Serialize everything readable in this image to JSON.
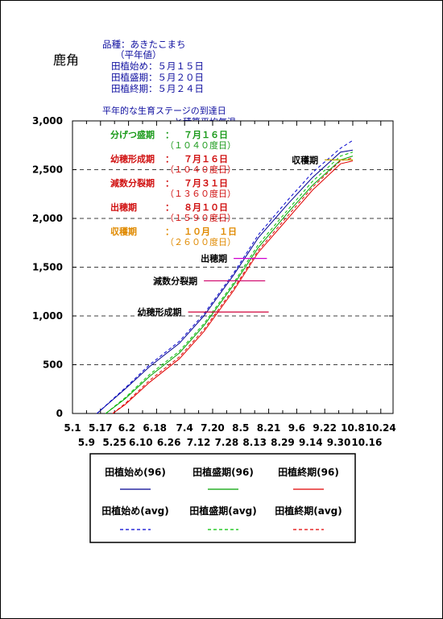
{
  "site": {
    "name": "鹿角"
  },
  "info": {
    "variety": "品種：あきたこまち",
    "note": "（平年値）",
    "plant_start": "田植始め：５月１５日",
    "plant_peak": "田植盛期：５月２０日",
    "plant_end": "田植終期：５月２４日"
  },
  "avg_title": {
    "line1": "平年的な生育ステージの到達日",
    "line2": "と積算平均気温"
  },
  "stages": [
    {
      "name": "分げつ盛期",
      "sep": "：",
      "date": "７月１６日",
      "gdd": "（１０４０度日）",
      "color": "#1a9a1a"
    },
    {
      "name": "幼穂形成期",
      "sep": "：",
      "date": "７月１６日",
      "gdd": "（１０４０度日）",
      "color": "#d01010"
    },
    {
      "name": "減数分裂期",
      "sep": "：",
      "date": "７月３１日",
      "gdd": "（１３６０度日）",
      "color": "#d01010"
    },
    {
      "name": "出穂期",
      "sep": "：",
      "date": "８月１０日",
      "gdd": "（１５９０度日）",
      "color": "#d01010"
    },
    {
      "name": "収穫期",
      "sep": "：",
      "date": "１０月　１日",
      "gdd": "（２６００度日）",
      "color": "#e08a00"
    }
  ],
  "annotations": [
    {
      "label": "収穫期",
      "value": 2600,
      "from": "9.22",
      "to": "10.8",
      "color": "#c0a000"
    },
    {
      "label": "出穂期",
      "value": 1590,
      "from": "8.1",
      "to": "8.20",
      "color": "#d000d0"
    },
    {
      "label": "減数分裂期",
      "value": 1360,
      "from": "7.15",
      "to": "8.19",
      "color": "#d0006a"
    },
    {
      "label": "幼穂形成期",
      "value": 1040,
      "from": "7.6",
      "to": "8.21",
      "color": "#d0003a"
    }
  ],
  "legend": {
    "items": [
      {
        "label": "田植始め(96)",
        "color": "#000090",
        "dash": "solid"
      },
      {
        "label": "田植盛期(96)",
        "color": "#00a000",
        "dash": "solid"
      },
      {
        "label": "田植終期(96)",
        "color": "#e00000",
        "dash": "solid"
      },
      {
        "label": "田植始め(avg)",
        "color": "#0000d0",
        "dash": "dashed"
      },
      {
        "label": "田植盛期(avg)",
        "color": "#00c000",
        "dash": "dashed"
      },
      {
        "label": "田植終期(avg)",
        "color": "#e00000",
        "dash": "dashed"
      }
    ]
  },
  "chart_data": {
    "type": "line",
    "x_tick_labels_top": [
      "5.1",
      "5.17",
      "6.2",
      "6.18",
      "7.4",
      "7.20",
      "8.5",
      "8.21",
      "9.6",
      "9.22",
      "10.8",
      "10.24"
    ],
    "x_tick_labels_bottom": [
      "5.9",
      "5.25",
      "6.10",
      "6.26",
      "7.12",
      "7.28",
      "8.13",
      "8.29",
      "9.14",
      "9.30",
      "10.16"
    ],
    "y_tick_labels": [
      "0",
      "500",
      "1,000",
      "1,500",
      "2,000",
      "2,500",
      "3,000"
    ],
    "ylim": [
      0,
      3000
    ],
    "xlim": [
      "5.1",
      "10.31"
    ],
    "grid": "horizontal-dashed",
    "series": [
      {
        "name": "田植始め(96)",
        "x": [
          "5.15",
          "6.1",
          "6.15",
          "7.1",
          "7.15",
          "8.1",
          "8.15",
          "9.1",
          "9.15",
          "10.1",
          "10.8"
        ],
        "values": [
          0,
          250,
          480,
          720,
          1000,
          1420,
          1800,
          2150,
          2420,
          2680,
          2700
        ]
      },
      {
        "name": "田植盛期(96)",
        "x": [
          "5.20",
          "6.1",
          "6.15",
          "7.1",
          "7.15",
          "8.1",
          "8.15",
          "9.1",
          "9.15",
          "10.1",
          "10.8"
        ],
        "values": [
          0,
          150,
          380,
          620,
          900,
          1320,
          1700,
          2060,
          2340,
          2600,
          2640
        ]
      },
      {
        "name": "田植終期(96)",
        "x": [
          "5.24",
          "6.1",
          "6.15",
          "7.1",
          "7.15",
          "8.1",
          "8.15",
          "9.1",
          "9.15",
          "10.1",
          "10.8"
        ],
        "values": [
          0,
          90,
          320,
          560,
          840,
          1260,
          1650,
          2000,
          2290,
          2560,
          2590
        ]
      },
      {
        "name": "田植始め(avg)",
        "x": [
          "5.15",
          "6.1",
          "6.15",
          "7.1",
          "7.15",
          "8.1",
          "8.15",
          "9.1",
          "9.15",
          "10.1",
          "10.8"
        ],
        "values": [
          0,
          260,
          500,
          740,
          1020,
          1440,
          1830,
          2190,
          2470,
          2720,
          2800
        ]
      },
      {
        "name": "田植盛期(avg)",
        "x": [
          "5.20",
          "6.1",
          "6.15",
          "7.1",
          "7.15",
          "8.1",
          "8.15",
          "9.1",
          "9.15",
          "10.1",
          "10.8"
        ],
        "values": [
          0,
          160,
          400,
          640,
          920,
          1340,
          1730,
          2090,
          2380,
          2640,
          2680
        ]
      },
      {
        "name": "田植終期(avg)",
        "x": [
          "5.24",
          "6.1",
          "6.15",
          "7.1",
          "7.15",
          "8.1",
          "8.15",
          "9.1",
          "9.15",
          "10.1",
          "10.8"
        ],
        "values": [
          0,
          100,
          340,
          580,
          860,
          1280,
          1670,
          2030,
          2320,
          2590,
          2620
        ]
      }
    ]
  }
}
